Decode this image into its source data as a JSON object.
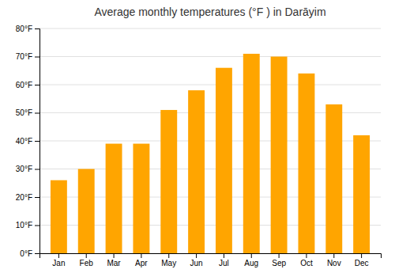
{
  "chart_data": {
    "type": "bar",
    "title": "Average monthly temperatures (°F ) in Darāyim",
    "categories": [
      "Jan",
      "Feb",
      "Mar",
      "Apr",
      "May",
      "Jun",
      "Jul",
      "Aug",
      "Sep",
      "Oct",
      "Nov",
      "Dec"
    ],
    "values": [
      26,
      30,
      39,
      39,
      51,
      58,
      66,
      71,
      70,
      64,
      53,
      42
    ],
    "color": "#FFA500",
    "ylim": [
      0,
      80
    ],
    "yticks": [
      {
        "value": 0,
        "label": "0°F"
      },
      {
        "value": 10,
        "label": "10°F"
      },
      {
        "value": 20,
        "label": "20°F"
      },
      {
        "value": 30,
        "label": "30°F"
      },
      {
        "value": 40,
        "label": "40°F"
      },
      {
        "value": 50,
        "label": "50°F"
      },
      {
        "value": 60,
        "label": "60°F"
      },
      {
        "value": 70,
        "label": "70°F"
      },
      {
        "value": 80,
        "label": "80°F"
      }
    ],
    "grid": true
  }
}
